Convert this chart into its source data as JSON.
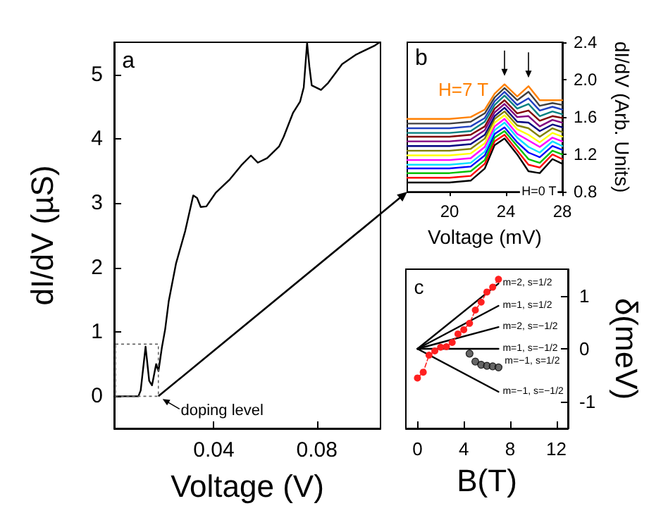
{
  "chart_data": [
    {
      "type": "line",
      "xlabel": "Voltage (V)",
      "ylabel": "dI/dV (µS)",
      "xlim": [
        0.0013,
        0.1047
      ],
      "xticks": [
        0.04,
        0.08
      ],
      "ylim": [
        -0.5,
        5.5
      ],
      "yticks": [
        0,
        1,
        2,
        3,
        4,
        5
      ],
      "series": [
        {
          "color": "#000000",
          "marker": "none",
          "x": [
            0.0013,
            0.0107,
            0.0116,
            0.0135,
            0.0149,
            0.016,
            0.0176,
            0.0185,
            0.0198,
            0.0211,
            0.0225,
            0.0253,
            0.0289,
            0.032,
            0.0335,
            0.0349,
            0.0371,
            0.0407,
            0.0462,
            0.0507,
            0.0544,
            0.0571,
            0.0607,
            0.0653,
            0.0671,
            0.0707,
            0.0735,
            0.0749,
            0.0762,
            0.0771,
            0.078,
            0.0816,
            0.0844,
            0.0898,
            0.0953,
            0.1025,
            0.1044
          ],
          "values": [
            0,
            0,
            0.09,
            0.77,
            0.24,
            0.17,
            0.5,
            0.39,
            0.75,
            1.04,
            1.48,
            2.06,
            2.57,
            3.12,
            3.08,
            2.94,
            2.95,
            3.16,
            3.37,
            3.59,
            3.74,
            3.63,
            3.7,
            3.88,
            4.03,
            4.4,
            4.58,
            4.8,
            5.49,
            5.12,
            4.83,
            4.76,
            4.87,
            5.16,
            5.31,
            5.45,
            5.5
          ]
        }
      ],
      "annotations": [
        "a",
        "doping level"
      ]
    },
    {
      "type": "line",
      "xlabel": "Voltage (mV)",
      "y2label": "dI/dV (Arb. Units)",
      "xlim": [
        17,
        28
      ],
      "xticks": [
        20,
        24,
        28
      ],
      "y2lim": [
        0.8,
        2.4
      ],
      "y2ticks": [
        0.8,
        1.2,
        1.6,
        {
          "value": 2,
          "label": "2.0"
        },
        2.4
      ],
      "x": [
        17,
        20,
        21.5,
        22.5,
        23.2,
        23.9,
        24.8,
        25.6,
        26.4,
        27.3,
        28
      ],
      "series": [
        {
          "axis": "y2",
          "color": "#000000",
          "values": [
            0.9,
            0.9,
            0.92,
            1.05,
            1.3,
            1.37,
            1.2,
            1.02,
            1.0,
            1.15,
            1.1
          ]
        },
        {
          "axis": "y2",
          "color": "#ff0000",
          "values": [
            0.95,
            0.95,
            0.97,
            1.1,
            1.34,
            1.41,
            1.24,
            1.09,
            1.06,
            1.2,
            1.15
          ]
        },
        {
          "axis": "y2",
          "color": "#00c000",
          "values": [
            1.0,
            1.0,
            1.02,
            1.14,
            1.38,
            1.45,
            1.29,
            1.15,
            1.11,
            1.24,
            1.2
          ]
        },
        {
          "axis": "y2",
          "color": "#0000ff",
          "values": [
            1.05,
            1.05,
            1.07,
            1.19,
            1.42,
            1.49,
            1.33,
            1.22,
            1.17,
            1.29,
            1.25
          ]
        },
        {
          "axis": "y2",
          "color": "#00e0ff",
          "values": [
            1.09,
            1.09,
            1.11,
            1.23,
            1.46,
            1.54,
            1.38,
            1.28,
            1.22,
            1.34,
            1.29
          ]
        },
        {
          "axis": "y2",
          "color": "#ff00ff",
          "values": [
            1.14,
            1.14,
            1.16,
            1.28,
            1.5,
            1.58,
            1.42,
            1.35,
            1.28,
            1.38,
            1.34
          ]
        },
        {
          "axis": "y2",
          "color": "#ffff00",
          "values": [
            1.19,
            1.19,
            1.21,
            1.32,
            1.54,
            1.62,
            1.47,
            1.41,
            1.33,
            1.43,
            1.39
          ]
        },
        {
          "axis": "y2",
          "color": "#808000",
          "values": [
            1.24,
            1.24,
            1.26,
            1.37,
            1.58,
            1.66,
            1.51,
            1.48,
            1.39,
            1.48,
            1.44
          ]
        },
        {
          "axis": "y2",
          "color": "#000080",
          "values": [
            1.29,
            1.29,
            1.31,
            1.41,
            1.61,
            1.7,
            1.55,
            1.54,
            1.45,
            1.52,
            1.49
          ]
        },
        {
          "axis": "y2",
          "color": "#800080",
          "values": [
            1.34,
            1.34,
            1.36,
            1.46,
            1.65,
            1.74,
            1.6,
            1.61,
            1.5,
            1.57,
            1.54
          ]
        },
        {
          "axis": "y2",
          "color": "#800000",
          "values": [
            1.39,
            1.39,
            1.41,
            1.5,
            1.69,
            1.78,
            1.64,
            1.67,
            1.56,
            1.61,
            1.59
          ]
        },
        {
          "axis": "y2",
          "color": "#008080",
          "values": [
            1.43,
            1.43,
            1.45,
            1.55,
            1.73,
            1.83,
            1.69,
            1.74,
            1.61,
            1.66,
            1.63
          ]
        },
        {
          "axis": "y2",
          "color": "#2040c0",
          "values": [
            1.48,
            1.48,
            1.5,
            1.59,
            1.77,
            1.87,
            1.73,
            1.8,
            1.67,
            1.71,
            1.68
          ]
        },
        {
          "axis": "y2",
          "color": "#404040",
          "values": [
            1.53,
            1.53,
            1.55,
            1.64,
            1.81,
            1.91,
            1.78,
            1.87,
            1.72,
            1.75,
            1.73
          ]
        },
        {
          "axis": "y2",
          "color": "#ff8000",
          "values": [
            1.58,
            1.58,
            1.6,
            1.68,
            1.85,
            1.95,
            1.82,
            1.93,
            1.78,
            1.78,
            1.78
          ]
        }
      ],
      "annotations": [
        "b",
        "H=7 T",
        "H=0 T"
      ]
    },
    {
      "type": "line",
      "xlabel": "B(T)",
      "y2label": "δ(meV)",
      "xlim": [
        -1,
        13
      ],
      "xticks": [
        0,
        4,
        8,
        12
      ],
      "y2lim": [
        -1.5,
        1.5
      ],
      "y2ticks": [
        -1,
        0,
        1
      ],
      "series": [
        {
          "axis": "y2",
          "name": "m=2, s=1/2",
          "color": "#000000",
          "marker": "none",
          "x": [
            0,
            7
          ],
          "values": [
            0,
            1.23
          ]
        },
        {
          "axis": "y2",
          "name": "m=1, s=1/2",
          "color": "#000000",
          "marker": "none",
          "x": [
            0,
            7
          ],
          "values": [
            0,
            0.81
          ]
        },
        {
          "axis": "y2",
          "name": "m=2, s=−1/2",
          "color": "#000000",
          "marker": "none",
          "x": [
            0,
            7
          ],
          "values": [
            0,
            0.41
          ]
        },
        {
          "axis": "y2",
          "name": "m=1, s=−1/2",
          "color": "#000000",
          "marker": "none",
          "x": [
            0,
            7
          ],
          "values": [
            0,
            0
          ]
        },
        {
          "axis": "y2",
          "name": "m=−1, s=−1/2",
          "color": "#000000",
          "marker": "none",
          "x": [
            0,
            7
          ],
          "values": [
            0,
            -0.81
          ]
        },
        {
          "axis": "y2",
          "color": "#ff2020",
          "marker": "circle",
          "line_style": "dashed",
          "x": [
            0,
            0.5,
            1,
            1.5,
            2,
            2.5,
            3,
            3.5,
            4,
            4.5,
            5,
            5.5,
            6,
            6.5,
            7
          ],
          "values": [
            -0.55,
            -0.44,
            -0.12,
            -0.04,
            0.03,
            0.04,
            0.12,
            0.28,
            0.36,
            0.48,
            0.73,
            0.88,
            1.07,
            1.16,
            1.31
          ]
        },
        {
          "axis": "y2",
          "type": "scatter",
          "color": "#404040",
          "marker": "circle",
          "x": [
            4.5,
            5,
            5.5,
            6,
            6.5,
            7
          ],
          "values": [
            -0.09,
            -0.24,
            -0.3,
            -0.32,
            -0.33,
            -0.35
          ]
        }
      ],
      "annotations": [
        "c",
        "m=−1, s=1/2"
      ]
    }
  ]
}
